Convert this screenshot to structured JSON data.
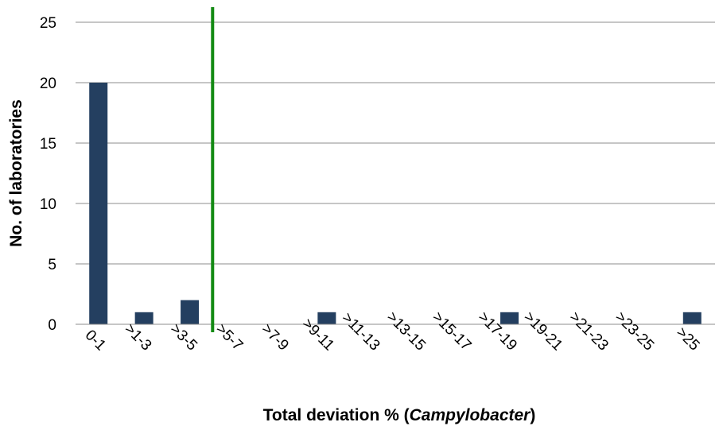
{
  "chart_data": {
    "type": "bar",
    "title": "",
    "xlabel_parts": [
      "Total deviation % (",
      "Campylobacter",
      ")"
    ],
    "ylabel": "No. of laboratories",
    "categories": [
      "0-1",
      ">1-3",
      ">3-5",
      ">5-7",
      ">7-9",
      ">9-11",
      ">11-13",
      ">13-15",
      ">15-17",
      ">17-19",
      ">19-21",
      ">21-23",
      ">23-25",
      ">25"
    ],
    "values": [
      20,
      1,
      2,
      0,
      0,
      1,
      0,
      0,
      0,
      1,
      0,
      0,
      0,
      1
    ],
    "ylim": [
      0,
      25
    ],
    "yticks": [
      0,
      5,
      10,
      15,
      20,
      25
    ],
    "grid": true,
    "legend": "none",
    "bar_color": "#243F60",
    "reference_line": {
      "after_category": ">3-5",
      "color": "#138A13"
    }
  }
}
